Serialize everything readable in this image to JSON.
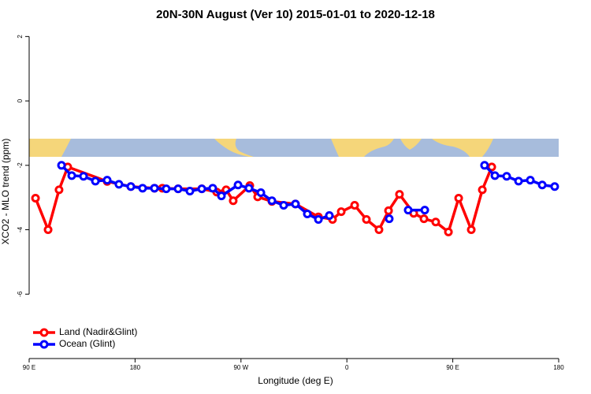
{
  "chart_data": {
    "type": "line",
    "title": "20N-30N August (Ver 10)   2015-01-01 to 2020-12-18",
    "xlabel": "Longitude (deg E)",
    "ylabel": "XCO2 - MLO trend (ppm)",
    "xlim": [
      90,
      540
    ],
    "ylim": [
      -8,
      2.4
    ],
    "xticks": [
      {
        "value": 90,
        "label": "90 E"
      },
      {
        "value": 180,
        "label": "180"
      },
      {
        "value": 270,
        "label": "90 W"
      },
      {
        "value": 360,
        "label": "0"
      },
      {
        "value": 450,
        "label": "90 E"
      },
      {
        "value": 540,
        "label": "180"
      }
    ],
    "yticks": [
      2,
      0,
      -2,
      -4,
      -6
    ],
    "legend": "bottom-left",
    "series": [
      {
        "name": "Land (Nadir&Glint)",
        "color": "#ff0000",
        "x": [
          95.4,
          106.1,
          115.4,
          122.8,
          156.3,
          176.4,
          196.5,
          203.2,
          216.6,
          236.7,
          249.4,
          257.4,
          263.4,
          277.5,
          284.2,
          296.3,
          316.3,
          335.8,
          347.8,
          355.2,
          366.6,
          376.6,
          387.3,
          395.4,
          404.7,
          416.8,
          425.5,
          435.5,
          446.3,
          455,
          465.7,
          475.1,
          483.1
        ],
        "values": [
          -3.02,
          -4.0,
          -2.76,
          -2.05,
          -2.5,
          -2.66,
          -2.71,
          -2.71,
          -2.73,
          -2.73,
          -2.83,
          -2.76,
          -3.1,
          -2.63,
          -2.98,
          -3.12,
          -3.2,
          -3.6,
          -3.68,
          -3.44,
          -3.24,
          -3.68,
          -4.0,
          -3.41,
          -2.9,
          -3.49,
          -3.66,
          -3.76,
          -4.07,
          -3.02,
          -4.0,
          -2.76,
          -2.05
        ]
      },
      {
        "name": "Ocean (Glint)",
        "color": "#0000ff",
        "x": [
          117.5,
          126.2,
          136.2,
          146.3,
          156.3,
          166.3,
          176.4,
          186.4,
          196.5,
          206.5,
          216.6,
          226.6,
          236.7,
          246,
          253.4,
          267.5,
          276.8,
          286.9,
          296.3,
          306.3,
          316.3,
          326.4,
          335.8,
          345.1,
          null,
          396,
          null,
          412.1,
          426.2,
          null,
          477,
          485.8,
          495.8,
          505.9,
          515.9,
          526,
          536.6
        ],
        "values": [
          -2.0,
          -2.32,
          -2.34,
          -2.49,
          -2.46,
          -2.59,
          -2.66,
          -2.71,
          -2.71,
          -2.73,
          -2.73,
          -2.8,
          -2.73,
          -2.71,
          -2.95,
          -2.61,
          -2.71,
          -2.85,
          -3.1,
          -3.24,
          -3.2,
          -3.51,
          -3.68,
          -3.56,
          null,
          -3.66,
          null,
          -3.39,
          -3.39,
          null,
          -2.0,
          -2.32,
          -2.34,
          -2.49,
          -2.46,
          -2.61,
          -2.66
        ]
      }
    ]
  }
}
